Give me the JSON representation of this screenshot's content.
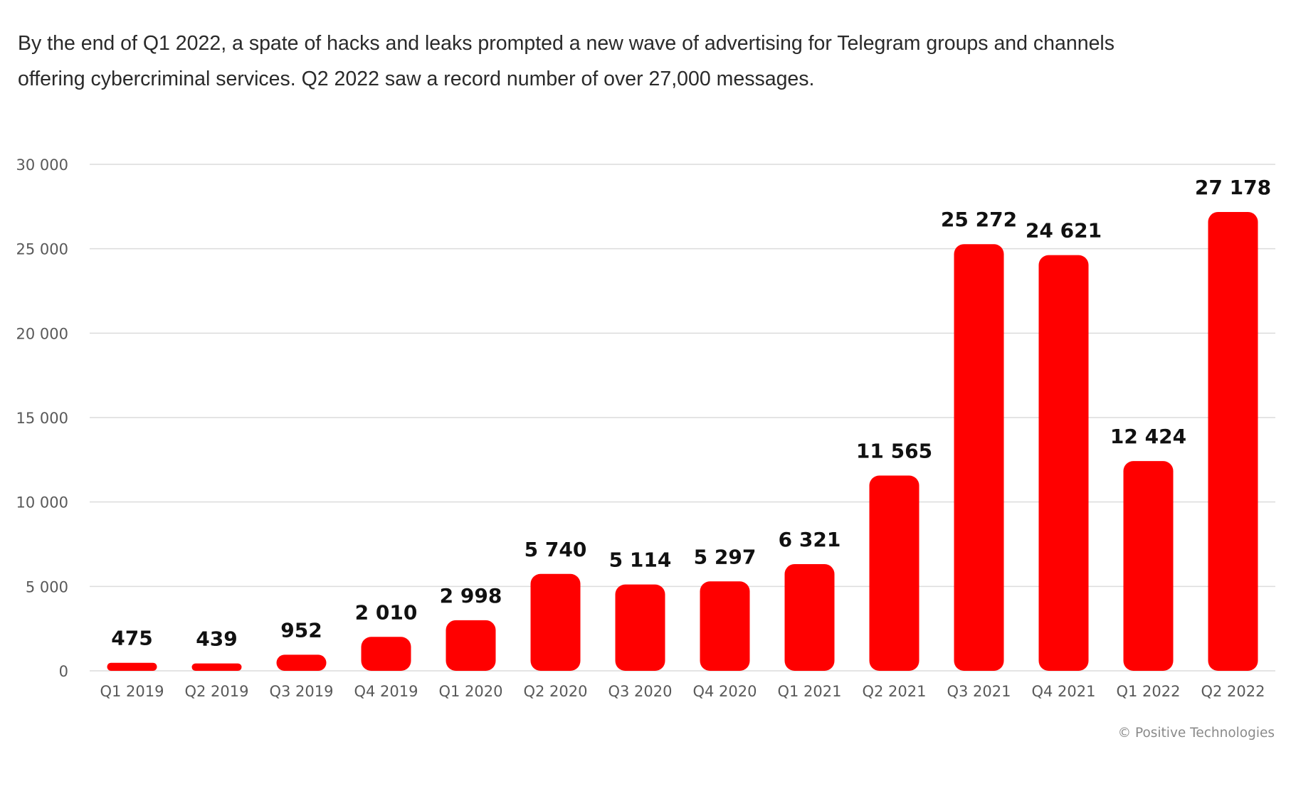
{
  "intro": {
    "line1": "By the end of Q1 2022, a spate of hacks and leaks prompted a new wave of advertising for Telegram groups and channels",
    "line2": "offering cybercriminal services. Q2 2022 saw a record number of over 27,000 messages."
  },
  "credit": "© Positive Technologies",
  "colors": {
    "bar": "#ff0000",
    "grid": "#dcdcdc",
    "axis_text": "#595959",
    "value_text": "#111111"
  },
  "chart_data": {
    "type": "bar",
    "title": "",
    "xlabel": "",
    "ylabel": "",
    "ylim": [
      0,
      30000
    ],
    "yticks": [
      0,
      5000,
      10000,
      15000,
      20000,
      25000,
      30000
    ],
    "ytick_labels": [
      "0",
      "5 000",
      "10 000",
      "15 000",
      "20 000",
      "25 000",
      "30 000"
    ],
    "grid": true,
    "categories": [
      "Q1 2019",
      "Q2 2019",
      "Q3 2019",
      "Q4 2019",
      "Q1 2020",
      "Q2 2020",
      "Q3 2020",
      "Q4 2020",
      "Q1 2021",
      "Q2 2021",
      "Q3 2021",
      "Q4 2021",
      "Q1 2022",
      "Q2 2022"
    ],
    "values": [
      475,
      439,
      952,
      2010,
      2998,
      5740,
      5114,
      5297,
      6321,
      11565,
      25272,
      24621,
      12424,
      27178
    ],
    "value_labels": [
      "475",
      "439",
      "952",
      "2 010",
      "2 998",
      "5 740",
      "5 114",
      "5 297",
      "6 321",
      "11 565",
      "25 272",
      "24 621",
      "12 424",
      "27 178"
    ]
  }
}
